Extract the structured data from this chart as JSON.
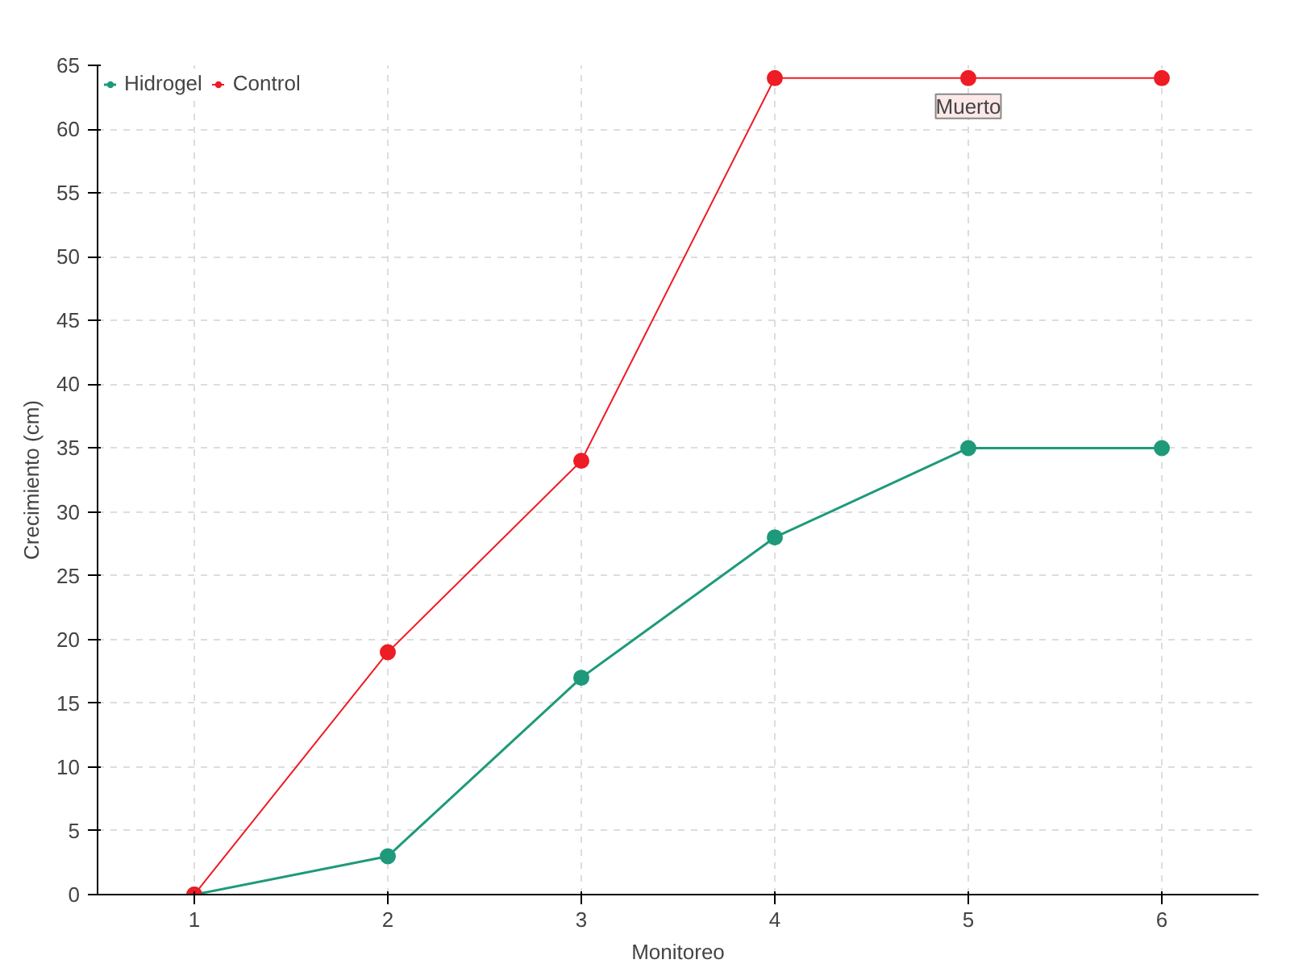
{
  "chart_data": {
    "type": "line",
    "xlabel": "Monitoreo",
    "ylabel": "Crecimiento (cm)",
    "x": [
      1,
      2,
      3,
      4,
      5,
      6
    ],
    "xlim": [
      0.5,
      6.5
    ],
    "xticks": [
      1,
      2,
      3,
      4,
      5,
      6
    ],
    "ylim": [
      0,
      65
    ],
    "yticks": [
      0,
      5,
      10,
      15,
      20,
      25,
      30,
      35,
      40,
      45,
      50,
      55,
      60,
      65
    ],
    "grid": true,
    "legend": "top left",
    "marker": "circle",
    "line_style": "solid",
    "series": [
      {
        "name": "Hidrogel",
        "color": "#1e9a7a",
        "values": [
          0,
          3,
          17,
          28,
          35,
          35
        ]
      },
      {
        "name": "Control",
        "color": "#ee1c25",
        "values": [
          0,
          19,
          34,
          64,
          64,
          64
        ]
      }
    ],
    "annotations": [
      {
        "text": "Muerto",
        "x": 5,
        "y": 64
      }
    ]
  }
}
